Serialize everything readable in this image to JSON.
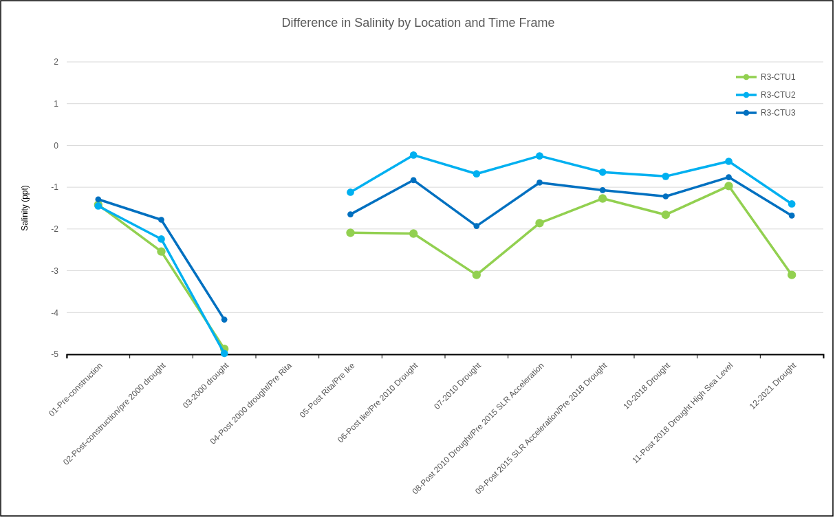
{
  "chart_data": {
    "type": "line",
    "title": "Difference in Salinity by Location and Time Frame",
    "ylabel": "Salinity (ppt)",
    "categories": [
      "01-Pre-construction",
      "02-Post-construction/pre 2000 drought",
      "03-2000 drought",
      "04-Post 2000 drought/Pre Rita",
      "05-Post Rita/Pre Ike",
      "06-Post Ike/Pre 2010 Drought",
      "07-2010 Drought",
      "08-Post 2010 Drought/Pre 2015 SLR Acceleration",
      "09-Post 2015 SLR Acceleration/Pre 2018 Drought",
      "10-2018 Drought",
      "11-Post 2018 Drought High Sea Level",
      "12-2021 Drought"
    ],
    "series": [
      {
        "name": "R3-CTU1",
        "color": "#92d050",
        "values": [
          -1.42,
          -2.54,
          -4.87,
          null,
          -2.09,
          -2.11,
          -3.1,
          -1.86,
          -1.27,
          -1.66,
          -0.97,
          -3.1
        ]
      },
      {
        "name": "R3-CTU2",
        "color": "#00b0f0",
        "values": [
          -1.45,
          -2.24,
          -4.98,
          null,
          -1.12,
          -0.23,
          -0.68,
          -0.25,
          -0.64,
          -0.74,
          -0.38,
          -1.4
        ]
      },
      {
        "name": "R3-CTU3",
        "color": "#0070c0",
        "values": [
          -1.29,
          -1.78,
          -4.17,
          null,
          -1.65,
          -0.83,
          -1.93,
          -0.89,
          -1.07,
          -1.22,
          -0.76,
          -1.68
        ]
      }
    ],
    "ylim": [
      -5,
      2
    ],
    "yticks": [
      -5,
      -4,
      -3,
      -2,
      -1,
      0,
      1,
      2
    ],
    "grid": "y",
    "legend": "top right",
    "marker": "circle",
    "line_style": "solid"
  }
}
